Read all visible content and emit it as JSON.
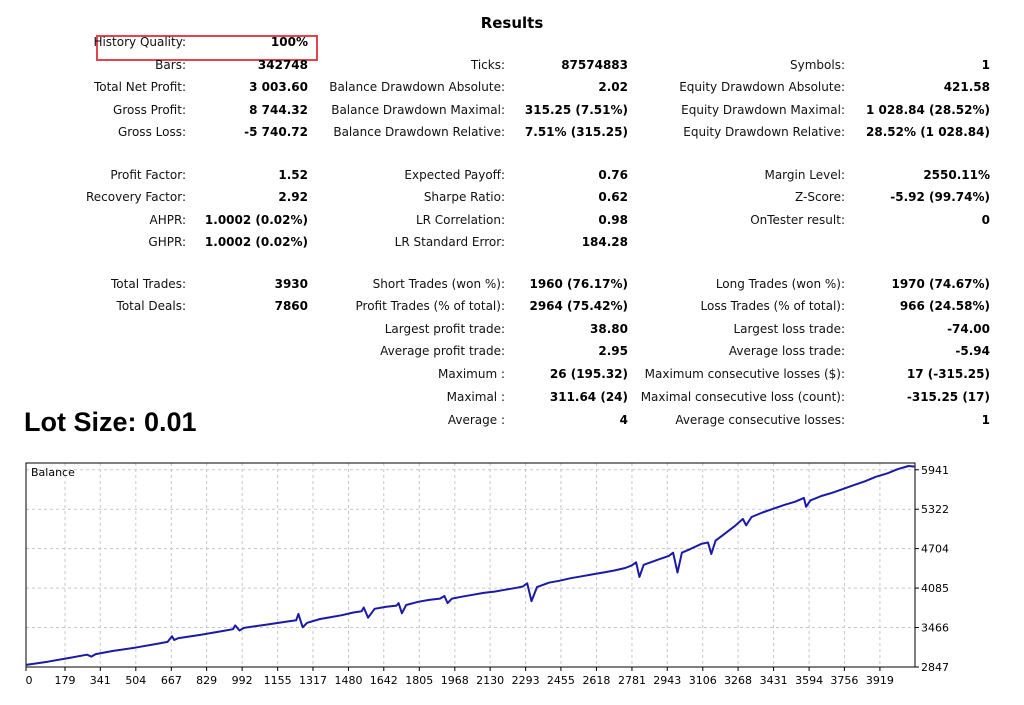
{
  "title": "Results",
  "stats": {
    "col1": [
      {
        "label": "History Quality:",
        "value": "100%"
      },
      {
        "label": "Bars:",
        "value": "342748"
      },
      {
        "label": "Total Net Profit:",
        "value": "3 003.60"
      },
      {
        "label": "Gross Profit:",
        "value": "8 744.32"
      },
      {
        "label": "Gross Loss:",
        "value": "-5 740.72"
      },
      {
        "label": "Profit Factor:",
        "value": "1.52"
      },
      {
        "label": "Recovery Factor:",
        "value": "2.92"
      },
      {
        "label": "AHPR:",
        "value": "1.0002 (0.02%)"
      },
      {
        "label": "GHPR:",
        "value": "1.0002 (0.02%)"
      },
      {
        "label": "Total Trades:",
        "value": "3930"
      },
      {
        "label": "Total Deals:",
        "value": "7860"
      }
    ],
    "col2": [
      {
        "label": "Ticks:",
        "value": "87574883"
      },
      {
        "label": "Balance Drawdown Absolute:",
        "value": "2.02"
      },
      {
        "label": "Balance Drawdown Maximal:",
        "value": "315.25 (7.51%)"
      },
      {
        "label": "Balance Drawdown Relative:",
        "value": "7.51% (315.25)"
      },
      {
        "label": "Expected Payoff:",
        "value": "0.76"
      },
      {
        "label": "Sharpe Ratio:",
        "value": "0.62"
      },
      {
        "label": "LR Correlation:",
        "value": "0.98"
      },
      {
        "label": "LR Standard Error:",
        "value": "184.28"
      },
      {
        "label": "Short Trades (won %):",
        "value": "1960 (76.17%)"
      },
      {
        "label": "Profit Trades (% of total):",
        "value": "2964 (75.42%)"
      },
      {
        "label": "Largest profit trade:",
        "value": "38.80"
      },
      {
        "label": "Average profit trade:",
        "value": "2.95"
      },
      {
        "label": "Maximum :",
        "value": "26 (195.32)"
      },
      {
        "label": "Maximal :",
        "value": "311.64 (24)"
      },
      {
        "label": "Average :",
        "value": "4"
      }
    ],
    "col3": [
      {
        "label": "Symbols:",
        "value": "1"
      },
      {
        "label": "Equity Drawdown Absolute:",
        "value": "421.58"
      },
      {
        "label": "Equity Drawdown Maximal:",
        "value": "1 028.84 (28.52%)"
      },
      {
        "label": "Equity Drawdown Relative:",
        "value": "28.52% (1 028.84)"
      },
      {
        "label": "Margin Level:",
        "value": "2550.11%"
      },
      {
        "label": "Z-Score:",
        "value": "-5.92 (99.74%)"
      },
      {
        "label": "OnTester result:",
        "value": "0"
      },
      {
        "label": "Long Trades (won %):",
        "value": "1970 (74.67%)"
      },
      {
        "label": "Loss Trades (% of total):",
        "value": "966 (24.58%)"
      },
      {
        "label": "Largest loss trade:",
        "value": "-74.00"
      },
      {
        "label": "Average loss trade:",
        "value": "-5.94"
      },
      {
        "label": "Maximum consecutive losses ($):",
        "value": "17 (-315.25)"
      },
      {
        "label": "Maximal consecutive loss (count):",
        "value": "-315.25 (17)"
      },
      {
        "label": "Average consecutive losses:",
        "value": "1"
      }
    ]
  },
  "lot_size": "Lot Size: 0.01",
  "colors": {
    "line": "#1a1aa8",
    "highlight": "#e0474c",
    "grid": "#c8c8c8"
  },
  "chart_data": {
    "type": "line",
    "title": "Balance",
    "xlabel": "",
    "ylabel": "",
    "xlim": [
      0,
      4080
    ],
    "ylim": [
      2847,
      6047
    ],
    "grid": true,
    "x_ticks": [
      0,
      179,
      341,
      504,
      667,
      829,
      992,
      1155,
      1317,
      1480,
      1642,
      1805,
      1968,
      2130,
      2293,
      2455,
      2618,
      2781,
      2943,
      3106,
      3268,
      3431,
      3594,
      3756,
      3919
    ],
    "y_ticks": [
      2847,
      3466,
      4085,
      4704,
      5322,
      5941
    ],
    "series": [
      {
        "values": [
          [
            0,
            2880
          ],
          [
            100,
            2930
          ],
          [
            200,
            2990
          ],
          [
            280,
            3040
          ],
          [
            300,
            3010
          ],
          [
            320,
            3050
          ],
          [
            400,
            3100
          ],
          [
            500,
            3150
          ],
          [
            600,
            3210
          ],
          [
            650,
            3240
          ],
          [
            670,
            3330
          ],
          [
            680,
            3270
          ],
          [
            700,
            3300
          ],
          [
            800,
            3350
          ],
          [
            900,
            3410
          ],
          [
            950,
            3440
          ],
          [
            960,
            3500
          ],
          [
            980,
            3420
          ],
          [
            1000,
            3460
          ],
          [
            1100,
            3510
          ],
          [
            1200,
            3560
          ],
          [
            1240,
            3580
          ],
          [
            1250,
            3680
          ],
          [
            1270,
            3470
          ],
          [
            1290,
            3540
          ],
          [
            1350,
            3600
          ],
          [
            1400,
            3630
          ],
          [
            1450,
            3660
          ],
          [
            1500,
            3700
          ],
          [
            1540,
            3720
          ],
          [
            1550,
            3780
          ],
          [
            1570,
            3620
          ],
          [
            1600,
            3760
          ],
          [
            1650,
            3790
          ],
          [
            1700,
            3810
          ],
          [
            1710,
            3850
          ],
          [
            1725,
            3690
          ],
          [
            1745,
            3820
          ],
          [
            1800,
            3870
          ],
          [
            1850,
            3900
          ],
          [
            1900,
            3920
          ],
          [
            1920,
            3960
          ],
          [
            1935,
            3850
          ],
          [
            1955,
            3920
          ],
          [
            2000,
            3950
          ],
          [
            2050,
            3980
          ],
          [
            2100,
            4010
          ],
          [
            2150,
            4030
          ],
          [
            2200,
            4060
          ],
          [
            2250,
            4090
          ],
          [
            2280,
            4110
          ],
          [
            2300,
            4160
          ],
          [
            2320,
            3880
          ],
          [
            2345,
            4100
          ],
          [
            2400,
            4170
          ],
          [
            2450,
            4200
          ],
          [
            2500,
            4240
          ],
          [
            2550,
            4270
          ],
          [
            2600,
            4300
          ],
          [
            2650,
            4330
          ],
          [
            2700,
            4360
          ],
          [
            2750,
            4400
          ],
          [
            2780,
            4440
          ],
          [
            2800,
            4490
          ],
          [
            2815,
            4260
          ],
          [
            2835,
            4450
          ],
          [
            2900,
            4530
          ],
          [
            2950,
            4590
          ],
          [
            2970,
            4640
          ],
          [
            2990,
            4330
          ],
          [
            3010,
            4640
          ],
          [
            3050,
            4700
          ],
          [
            3100,
            4780
          ],
          [
            3130,
            4800
          ],
          [
            3145,
            4620
          ],
          [
            3165,
            4830
          ],
          [
            3200,
            4920
          ],
          [
            3250,
            5050
          ],
          [
            3290,
            5170
          ],
          [
            3305,
            5070
          ],
          [
            3330,
            5200
          ],
          [
            3380,
            5270
          ],
          [
            3430,
            5330
          ],
          [
            3480,
            5390
          ],
          [
            3530,
            5440
          ],
          [
            3570,
            5500
          ],
          [
            3580,
            5360
          ],
          [
            3600,
            5460
          ],
          [
            3650,
            5530
          ],
          [
            3700,
            5580
          ],
          [
            3750,
            5640
          ],
          [
            3800,
            5700
          ],
          [
            3850,
            5760
          ],
          [
            3900,
            5830
          ],
          [
            3950,
            5880
          ],
          [
            4000,
            5950
          ],
          [
            4050,
            6000
          ],
          [
            4080,
            5990
          ]
        ]
      }
    ]
  }
}
